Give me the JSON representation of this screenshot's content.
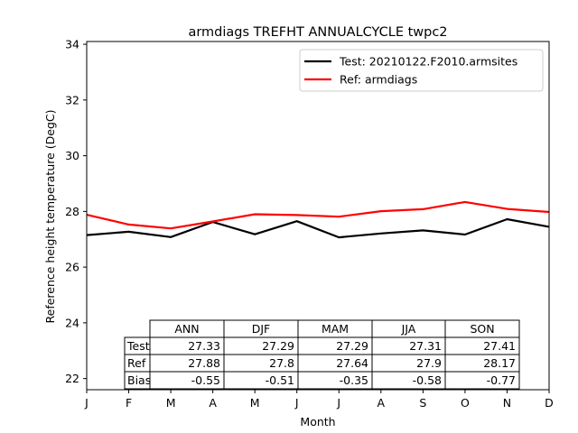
{
  "chart_data": {
    "type": "line",
    "title": "armdiags TREFHT ANNUALCYCLE twpc2",
    "xlabel": "Month",
    "ylabel": "Reference height temperature (DegC)",
    "categories": [
      "J",
      "F",
      "M",
      "A",
      "M",
      "J",
      "J",
      "A",
      "S",
      "O",
      "N",
      "D"
    ],
    "ylim": [
      21.6,
      34.1
    ],
    "yticks": [
      22,
      24,
      26,
      28,
      30,
      32,
      34
    ],
    "grid": false,
    "legend_position": "top-right",
    "series": [
      {
        "name": "Test: 20210122.F2010.armsites",
        "color": "#000000",
        "values": [
          27.15,
          27.27,
          27.08,
          27.62,
          27.18,
          27.65,
          27.07,
          27.21,
          27.32,
          27.17,
          27.72,
          27.45
        ]
      },
      {
        "name": "Ref: armdiags",
        "color": "#ff0000",
        "values": [
          27.88,
          27.53,
          27.39,
          27.64,
          27.9,
          27.87,
          27.81,
          28.01,
          28.08,
          28.34,
          28.09,
          27.98
        ]
      }
    ],
    "table": {
      "columns": [
        "ANN",
        "DJF",
        "MAM",
        "JJA",
        "SON"
      ],
      "rows": [
        {
          "label": "Test",
          "values": [
            "27.33",
            "27.29",
            "27.29",
            "27.31",
            "27.41"
          ]
        },
        {
          "label": "Ref",
          "values": [
            "27.88",
            "27.8",
            "27.64",
            "27.9",
            "28.17"
          ]
        },
        {
          "label": "Bias",
          "values": [
            "-0.55",
            "-0.51",
            "-0.35",
            "-0.58",
            "-0.77"
          ]
        }
      ]
    }
  }
}
